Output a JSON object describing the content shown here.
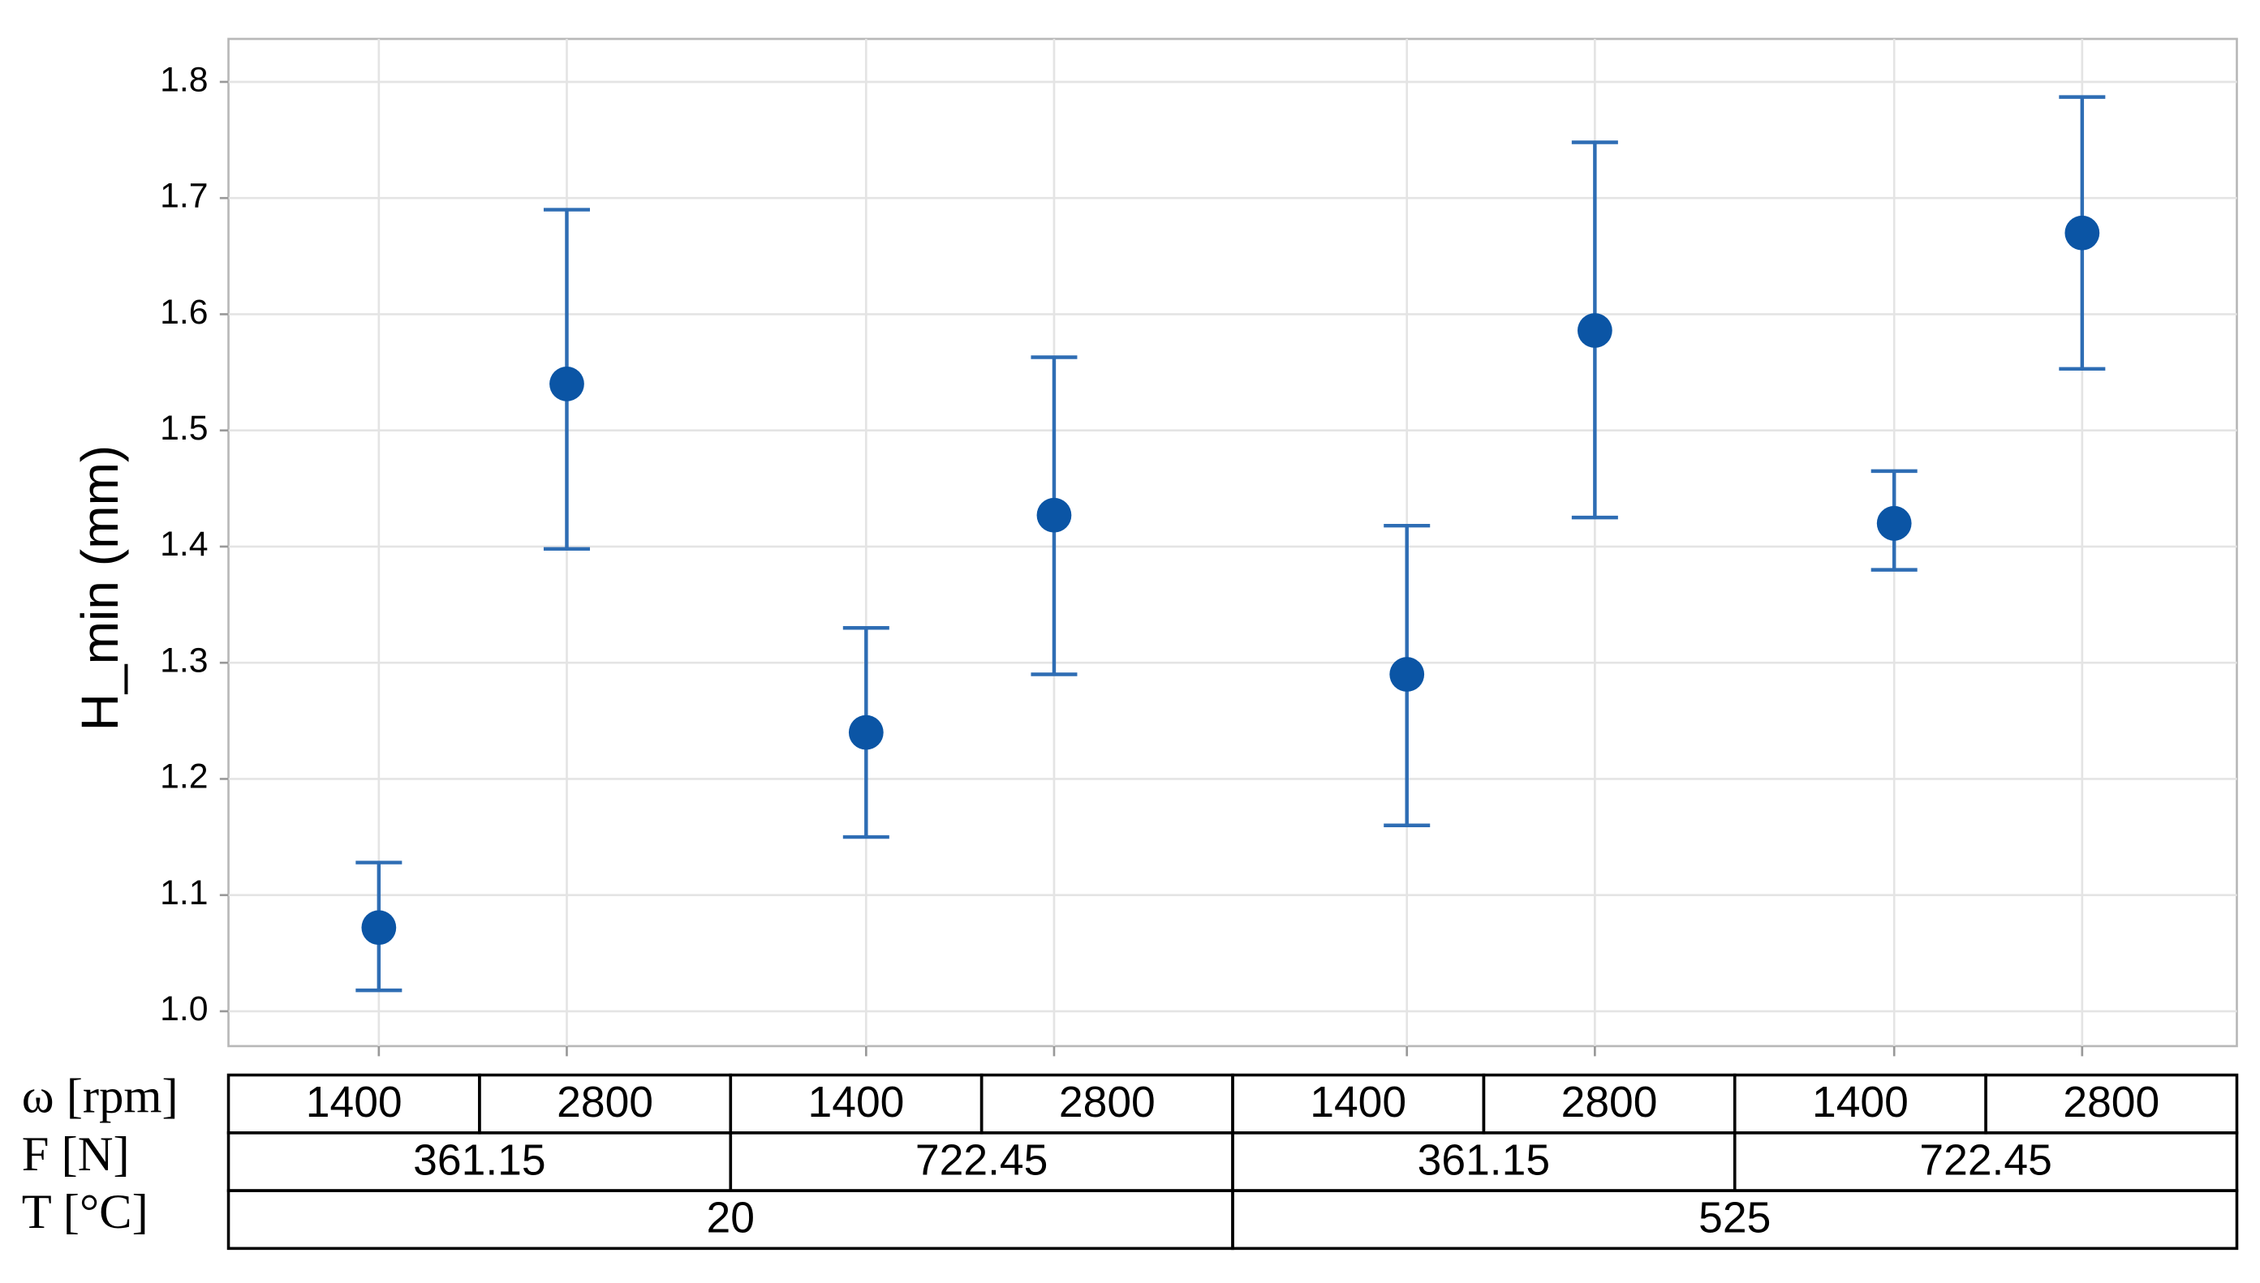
{
  "chart_data": {
    "type": "errorbar",
    "y_label": "H_min (mm)",
    "ylim": [
      0.97,
      1.837
    ],
    "yticks": [
      {
        "value": 1.0,
        "label": "1.0"
      },
      1.1,
      1.2,
      1.3,
      1.4,
      1.5,
      1.6,
      1.7,
      1.8
    ],
    "grid": true,
    "series": [
      {
        "color": "#0b55a5",
        "values": [
          1.072,
          1.54,
          1.24,
          1.427,
          1.29,
          1.586,
          1.42,
          1.67
        ],
        "lower": [
          1.018,
          1.398,
          1.15,
          1.29,
          1.16,
          1.425,
          1.38,
          1.553
        ],
        "upper": [
          1.128,
          1.69,
          1.33,
          1.563,
          1.418,
          1.748,
          1.465,
          1.787
        ]
      }
    ],
    "factors": [
      {
        "name": "ω [rpm]",
        "levels": [
          1400,
          2800,
          1400,
          2800,
          1400,
          2800,
          1400,
          2800
        ]
      },
      {
        "name": "F [N]",
        "levels": [
          361.15,
          722.45,
          361.15,
          722.45
        ]
      },
      {
        "name": "T [°C]",
        "levels": [
          20,
          525
        ]
      }
    ]
  }
}
